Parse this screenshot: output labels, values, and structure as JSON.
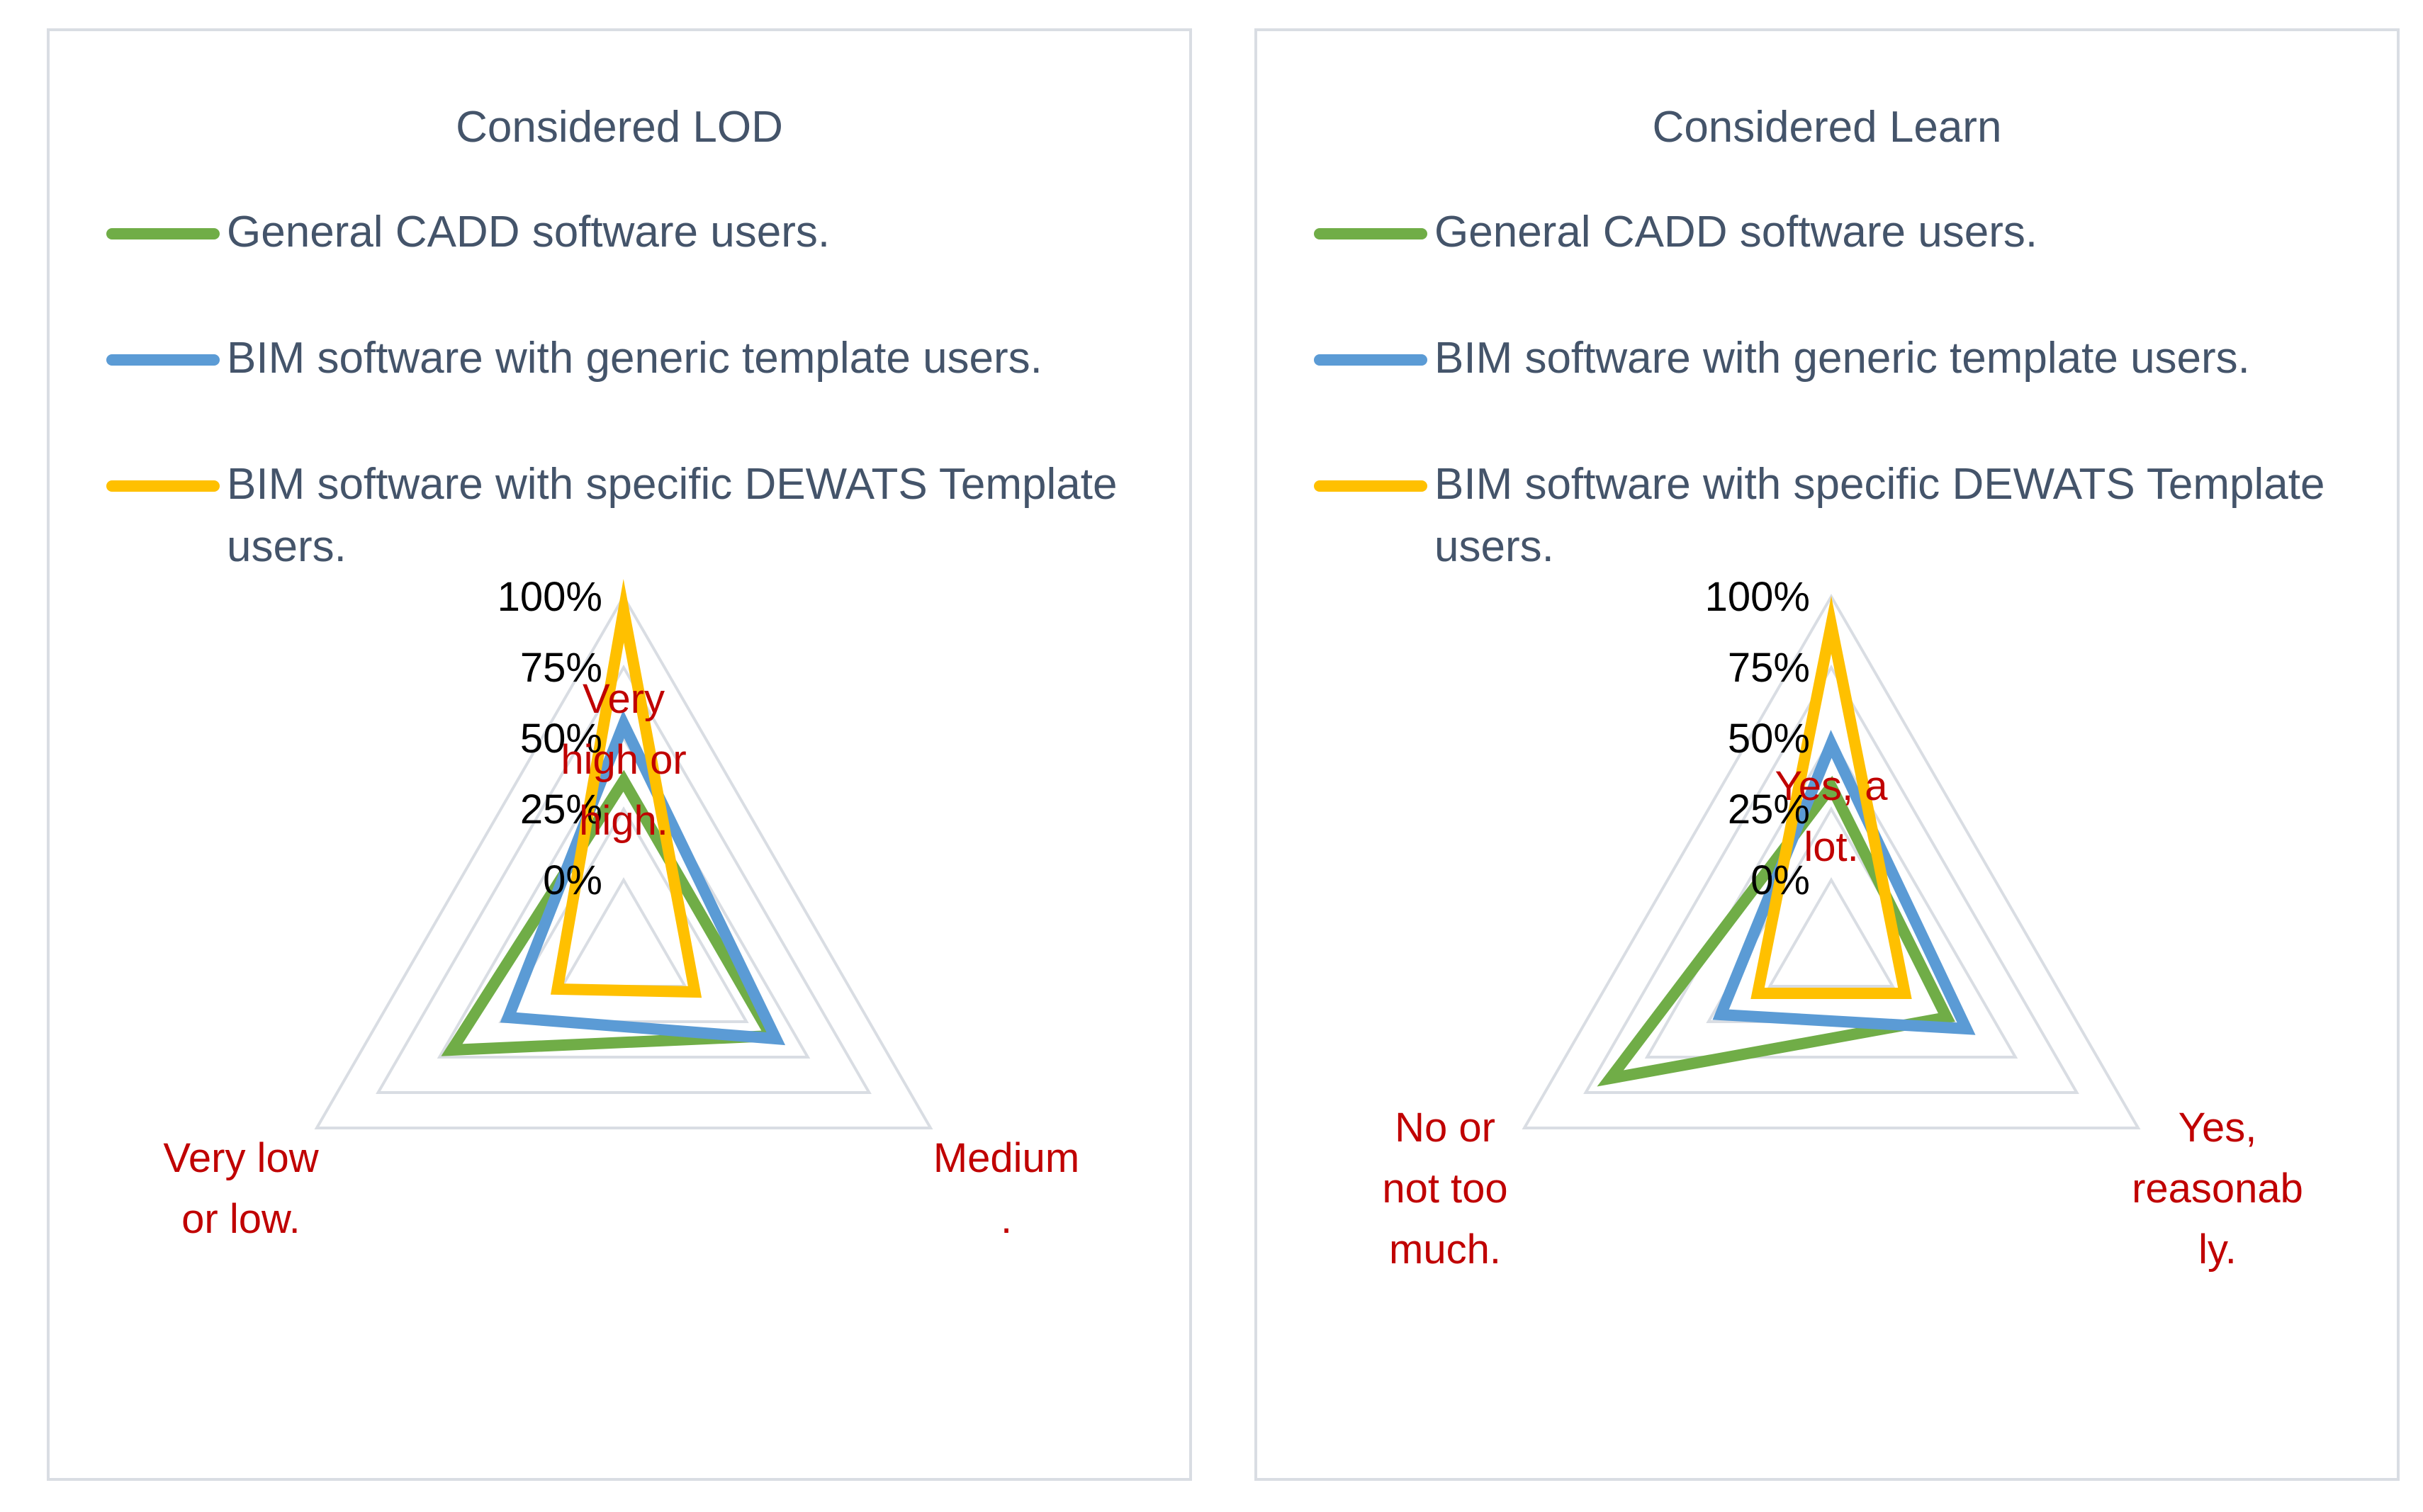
{
  "chart_data": [
    {
      "type": "radar",
      "title": "Considered LOD",
      "categories": [
        [
          "Very",
          "high or",
          "high."
        ],
        [
          "Medium",
          "."
        ],
        [
          "Very low",
          "or low."
        ]
      ],
      "axis_ticks": [
        "0%",
        "25%",
        "50%",
        "75%",
        "100%"
      ],
      "ylim": [
        0,
        1
      ],
      "series": [
        {
          "name": "General CADD software users.",
          "color": "#70ad47",
          "values": [
            0.35,
            0.35,
            0.45
          ]
        },
        {
          "name": "BIM software with generic template users.",
          "color": "#5b9bd5",
          "values": [
            0.55,
            0.37,
            0.22
          ]
        },
        {
          "name": "BIM software with specific DEWATS Template users.",
          "color": "#ffc000",
          "values": [
            0.95,
            0.04,
            0.02
          ]
        }
      ]
    },
    {
      "type": "radar",
      "title": "Considered Learn",
      "categories": [
        [
          "Yes, a",
          "lot."
        ],
        [
          "Yes,",
          "reasonab",
          "ly."
        ],
        [
          "No or",
          "not too",
          "much."
        ]
      ],
      "axis_ticks": [
        "0%",
        "25%",
        "50%",
        "75%",
        "100%"
      ],
      "ylim": [
        0,
        1
      ],
      "series": [
        {
          "name": "General CADD software users.",
          "color": "#70ad47",
          "values": [
            0.33,
            0.22,
            0.65
          ]
        },
        {
          "name": "BIM software with generic template users.",
          "color": "#5b9bd5",
          "values": [
            0.48,
            0.3,
            0.2
          ]
        },
        {
          "name": "BIM software with specific DEWATS Template users.",
          "color": "#ffc000",
          "values": [
            0.9,
            0.05,
            0.05
          ]
        }
      ]
    }
  ]
}
